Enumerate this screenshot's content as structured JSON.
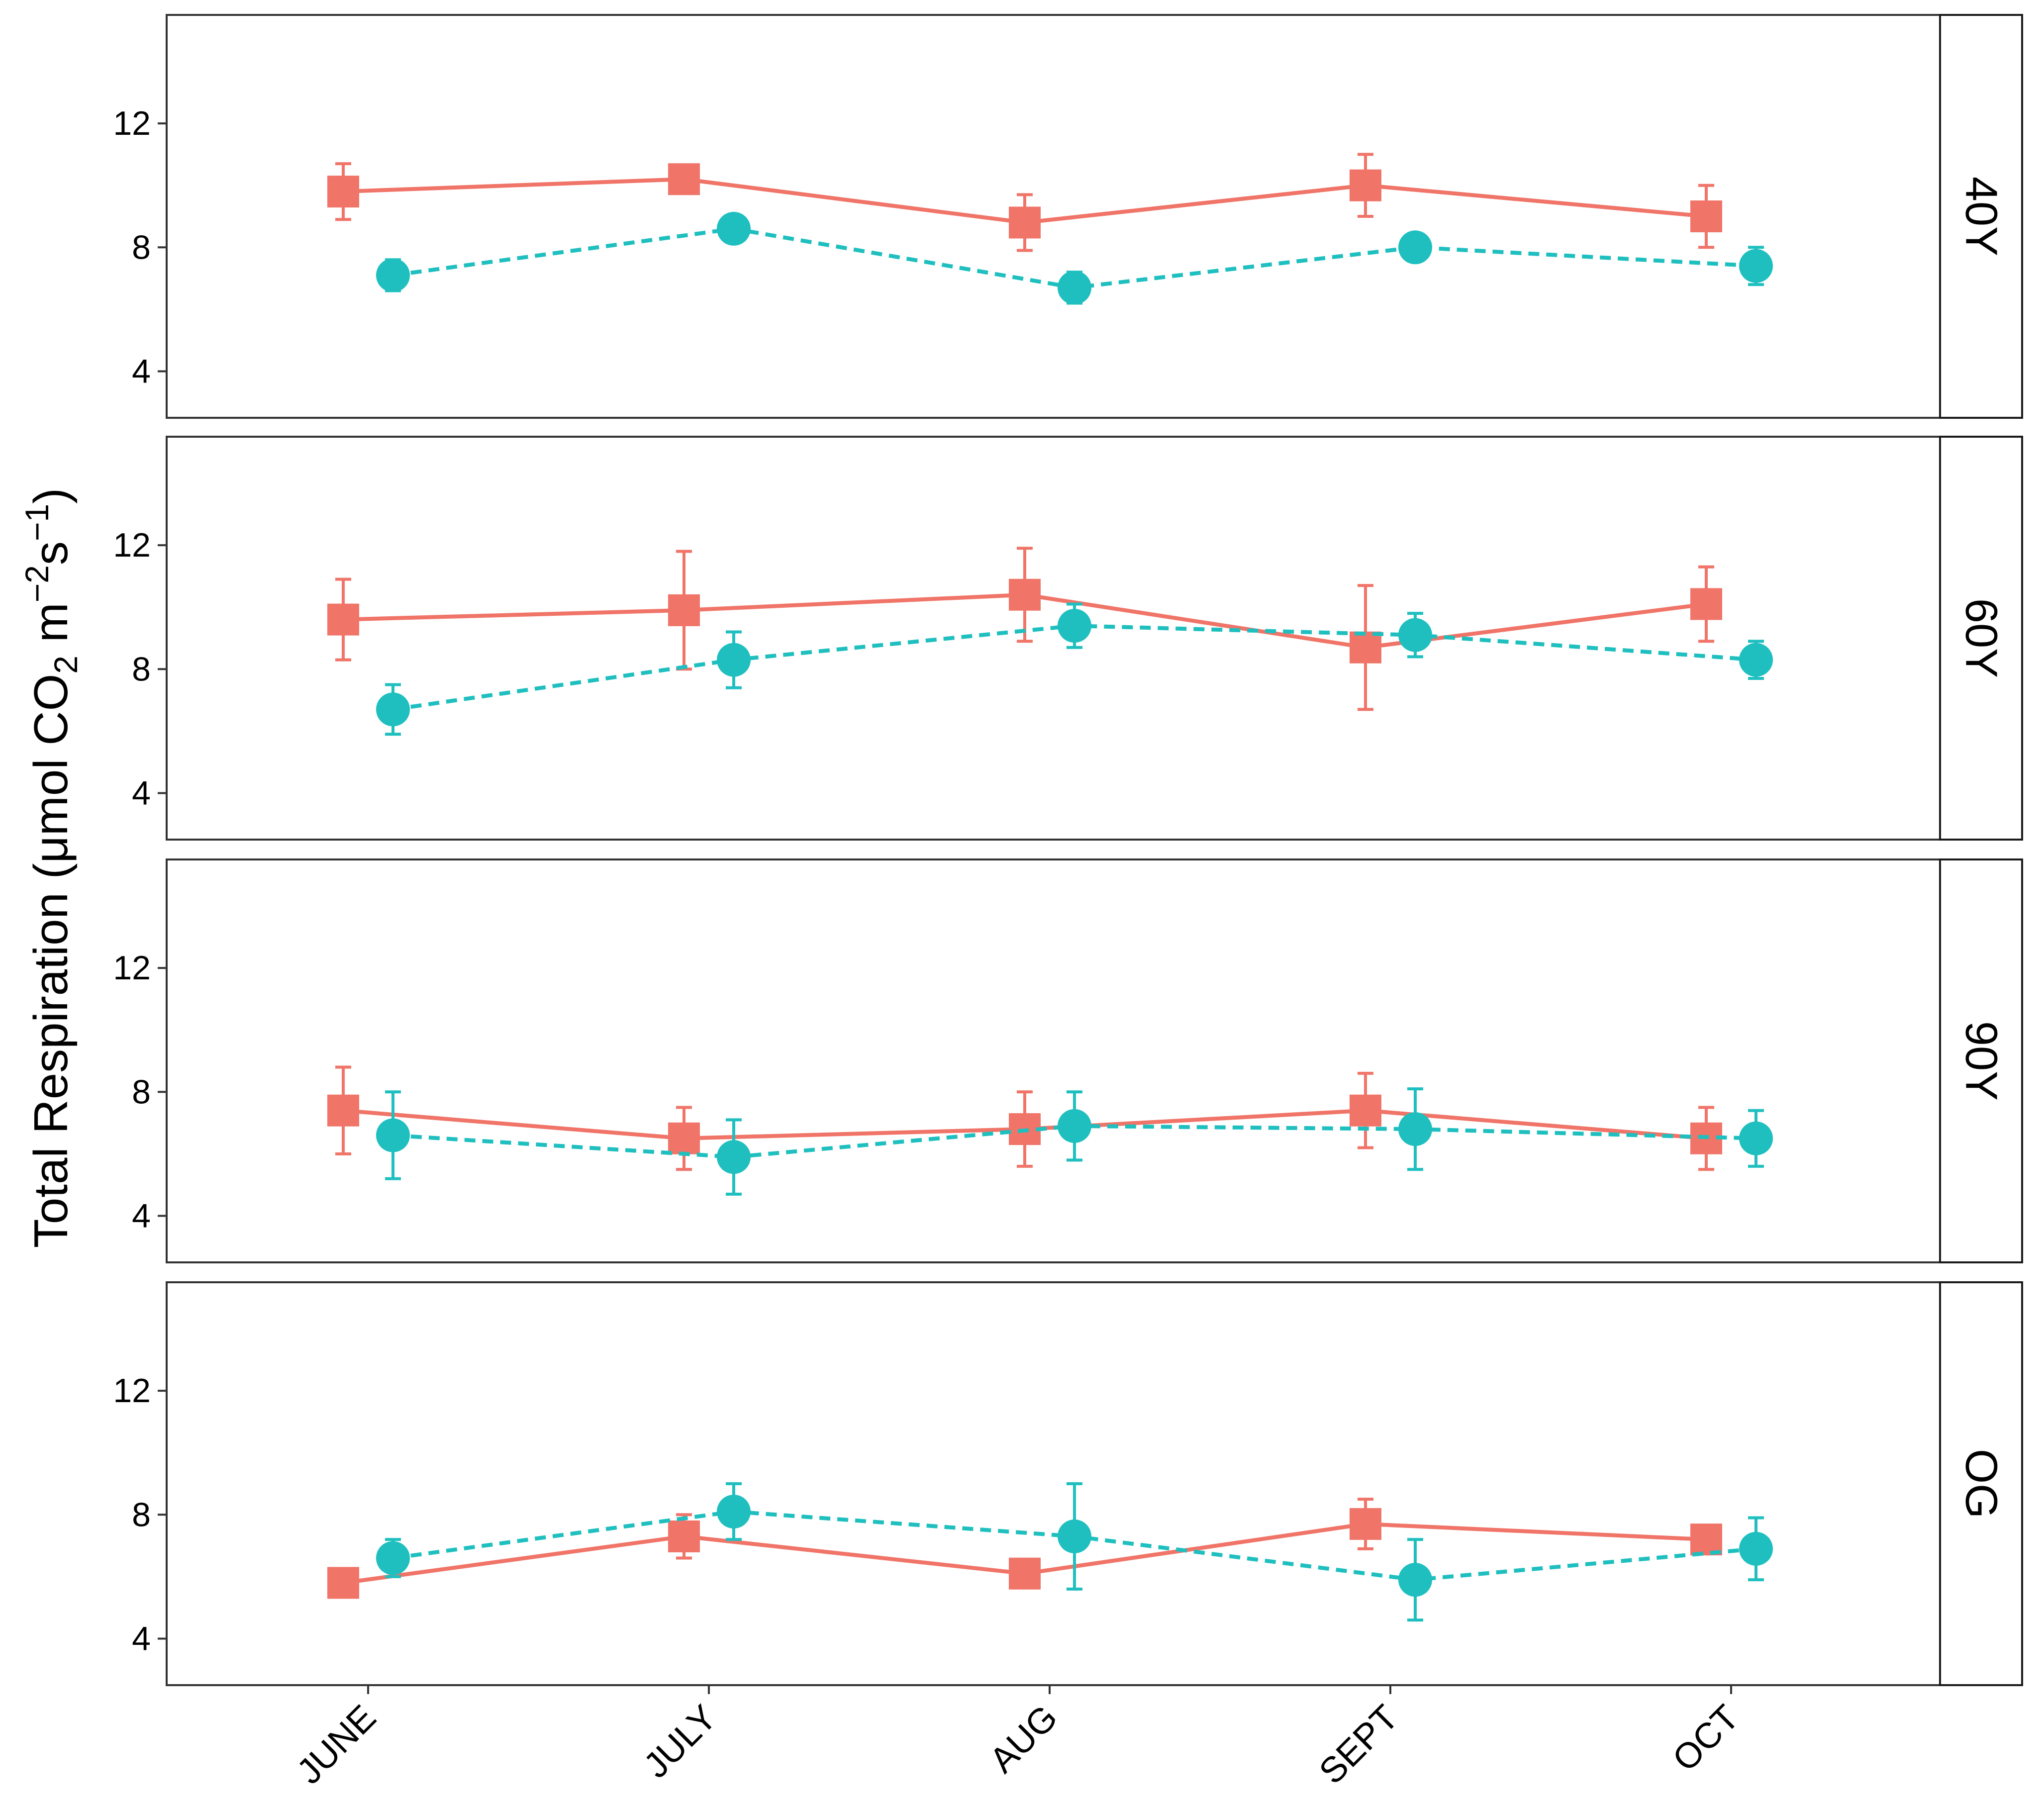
{
  "chart_data": {
    "type": "line",
    "layout": "faceted-panels-vertical",
    "ylabel": {
      "text": "Total Respiration (μmol CO",
      "sub": "2",
      "mid": " m",
      "sup1": "−2",
      "mid2": "s",
      "sup2": "−1",
      "end": ")"
    },
    "xlabel": "",
    "categories": [
      "JUNE",
      "JULY",
      "AUG",
      "SEPT",
      "OCT"
    ],
    "ylim": [
      2.5,
      15.5
    ],
    "yticks": [
      4,
      8,
      12
    ],
    "grid": false,
    "legend": "none",
    "series_styles": [
      {
        "name": "series-1",
        "color": "#F07468",
        "marker": "square",
        "line": "solid"
      },
      {
        "name": "series-2",
        "color": "#1FBFBF",
        "marker": "circle",
        "line": "dashed"
      }
    ],
    "panels": [
      {
        "label": "40Y",
        "series": [
          {
            "name": "series-1",
            "values": [
              9.8,
              10.2,
              8.8,
              10.0,
              9.0
            ],
            "errors": [
              0.9,
              0.3,
              0.9,
              1.0,
              1.0
            ]
          },
          {
            "name": "series-2",
            "values": [
              7.1,
              8.6,
              6.7,
              8.0,
              7.4
            ],
            "errors": [
              0.5,
              0.3,
              0.5,
              0.3,
              0.6
            ]
          }
        ]
      },
      {
        "label": "60Y",
        "series": [
          {
            "name": "series-1",
            "values": [
              9.6,
              9.9,
              10.4,
              8.7,
              10.1
            ],
            "errors": [
              1.3,
              1.9,
              1.5,
              2.0,
              1.2
            ]
          },
          {
            "name": "series-2",
            "values": [
              6.7,
              8.3,
              9.4,
              9.1,
              8.3
            ],
            "errors": [
              0.8,
              0.9,
              0.7,
              0.7,
              0.6
            ]
          }
        ]
      },
      {
        "label": "90Y",
        "series": [
          {
            "name": "series-1",
            "values": [
              7.4,
              6.5,
              6.8,
              7.4,
              6.5
            ],
            "errors": [
              1.4,
              1.0,
              1.2,
              1.2,
              1.0
            ]
          },
          {
            "name": "series-2",
            "values": [
              6.6,
              5.9,
              6.9,
              6.8,
              6.5
            ],
            "errors": [
              1.4,
              1.2,
              1.1,
              1.3,
              0.9
            ]
          }
        ]
      },
      {
        "label": "OG",
        "series": [
          {
            "name": "series-1",
            "values": [
              5.8,
              7.3,
              6.1,
              7.7,
              7.2
            ],
            "errors": [
              0.2,
              0.7,
              0.2,
              0.8,
              0.2
            ]
          },
          {
            "name": "series-2",
            "values": [
              6.6,
              8.1,
              7.3,
              5.9,
              6.9
            ],
            "errors": [
              0.6,
              0.9,
              1.7,
              1.3,
              1.0
            ]
          }
        ]
      }
    ]
  }
}
